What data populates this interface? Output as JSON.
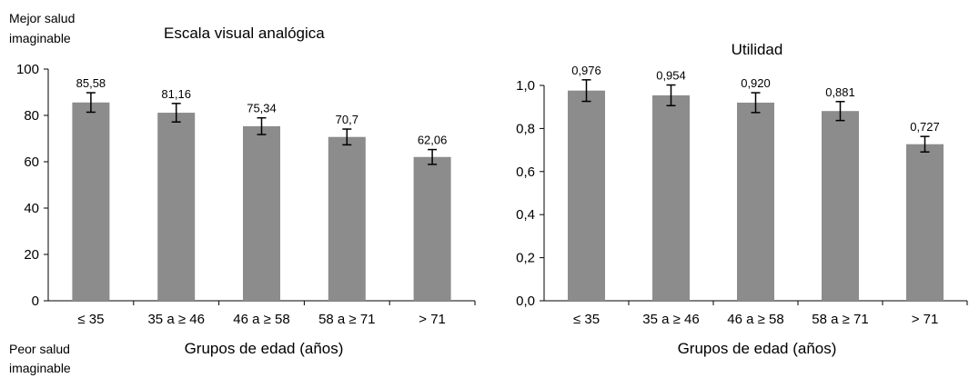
{
  "chart_data": [
    {
      "type": "bar",
      "title": "Escala visual analógica",
      "xlabel": "Grupos de edad (años)",
      "ylabel_top": [
        "Mejor salud",
        "imaginable"
      ],
      "ylabel_bottom": [
        "Peor salud",
        "imaginable"
      ],
      "categories": [
        "≤ 35",
        "35 a ≥ 46",
        "46 a ≥ 58",
        "58 a ≥ 71",
        "> 71"
      ],
      "values": [
        85.58,
        81.16,
        75.34,
        70.7,
        62.06
      ],
      "value_labels": [
        "85,58",
        "81,16",
        "75,34",
        "70,7",
        "62,06"
      ],
      "error": [
        4.2,
        4.0,
        3.6,
        3.4,
        3.2
      ],
      "ylim": [
        0,
        100
      ],
      "yticks": [
        0,
        20,
        40,
        60,
        80,
        100
      ],
      "ytick_labels": [
        "0",
        "20",
        "40",
        "60",
        "80",
        "100"
      ],
      "grid": false,
      "bar_color": "#8c8c8c"
    },
    {
      "type": "bar",
      "title": "Utilidad",
      "xlabel": "Grupos de edad (años)",
      "categories": [
        "≤ 35",
        "35 a ≥ 46",
        "46 a ≥ 58",
        "58 a ≥ 71",
        "> 71"
      ],
      "values": [
        0.976,
        0.954,
        0.92,
        0.881,
        0.727
      ],
      "value_labels": [
        "0,976",
        "0,954",
        "0,920",
        "0,881",
        "0,727"
      ],
      "error": [
        0.05,
        0.048,
        0.046,
        0.044,
        0.036
      ],
      "ylim": [
        0,
        1.0
      ],
      "yticks": [
        0,
        0.2,
        0.4,
        0.6,
        0.8,
        1.0
      ],
      "ytick_labels": [
        "0,0",
        "0,2",
        "0,4",
        "0,6",
        "0,8",
        "1,0"
      ],
      "grid": false,
      "bar_color": "#8c8c8c"
    }
  ]
}
